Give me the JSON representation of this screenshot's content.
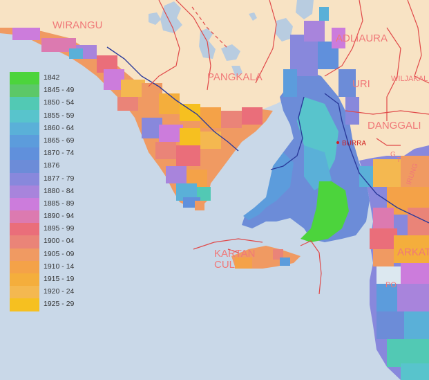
{
  "colors": {
    "sea": "#c9d8e8",
    "land_unsettled": "#f8e3c4",
    "lake": "#b8cce0",
    "boundary_line": "#e04848",
    "river_line": "#2a3a9a",
    "region_label": "#f07878",
    "town_label": "#d02020"
  },
  "legend": [
    {
      "label": "1842",
      "color": "#4cd43c"
    },
    {
      "label": "1845 - 49",
      "color": "#5cc868"
    },
    {
      "label": "1850 - 54",
      "color": "#52c9b4"
    },
    {
      "label": "1855 - 59",
      "color": "#58c4cc"
    },
    {
      "label": "1860 - 64",
      "color": "#5ab0d8"
    },
    {
      "label": "1865 - 69",
      "color": "#5c9cdc"
    },
    {
      "label": "1870 - 74",
      "color": "#6090dc"
    },
    {
      "label": "1876",
      "color": "#6c8cd8"
    },
    {
      "label": "1877 - 79",
      "color": "#8888dc"
    },
    {
      "label": "1880 - 84",
      "color": "#a884dc"
    },
    {
      "label": "1885 - 89",
      "color": "#cc7cdc"
    },
    {
      "label": "1890 - 94",
      "color": "#dc7ab0"
    },
    {
      "label": "1895 - 99",
      "color": "#ea6e7a"
    },
    {
      "label": "1900 - 04",
      "color": "#ea8478"
    },
    {
      "label": "1905 - 09",
      "color": "#f09a62"
    },
    {
      "label": "1910 - 14",
      "color": "#f4a248"
    },
    {
      "label": "1915 - 19",
      "color": "#f4ae3c"
    },
    {
      "label": "1920 - 24",
      "color": "#f4b850"
    },
    {
      "label": "1925 - 29",
      "color": "#f6c020"
    }
  ],
  "regions": {
    "wirangu": "WIRANGU",
    "adliaura": "ADLIAURA",
    "pangkala": "PANGKALA",
    "uri": "URI",
    "wiljakali": "WILJAKAL",
    "danggali": "DANGGALI",
    "kartan": "KARTAN",
    "cul": "CUL",
    "arkat": "ARKAT",
    "po": "PO",
    "irung": "IRUNG",
    "g": "G",
    "t": "T"
  },
  "towns": {
    "burra": "BURRA"
  }
}
